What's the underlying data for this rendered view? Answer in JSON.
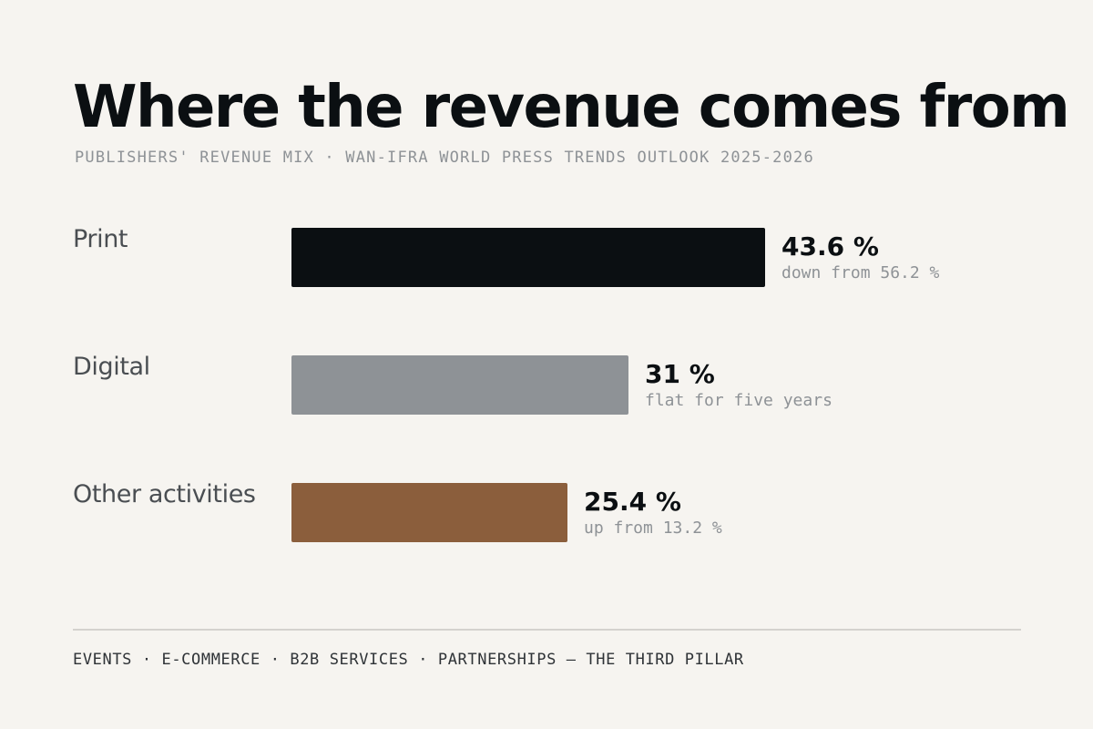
{
  "header": {
    "title": "Where the revenue comes from",
    "subtitle": "PUBLISHERS' REVENUE MIX · WAN-IFRA WORLD PRESS TRENDS OUTLOOK 2025-2026"
  },
  "chart_data": {
    "type": "bar",
    "orientation": "horizontal",
    "categories": [
      "Print",
      "Digital",
      "Other activities"
    ],
    "values": [
      43.6,
      31,
      25.4
    ],
    "value_labels": [
      "43.6 %",
      "31 %",
      "25.4 %"
    ],
    "notes": [
      "down from 56.2 %",
      "flat for five years",
      "up from 13.2 %"
    ],
    "colors": [
      "#0b0f12",
      "#8e9296",
      "#8b5e3c"
    ],
    "title": "Where the revenue comes from",
    "xlabel": "",
    "ylabel": "",
    "grid": false,
    "legend": "none"
  },
  "footer": {
    "text": "EVENTS · E-COMMERCE · B2B SERVICES · PARTNERSHIPS — THE THIRD PILLAR"
  }
}
